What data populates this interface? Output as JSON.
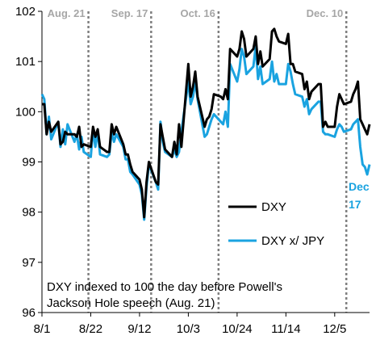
{
  "chart_data": {
    "type": "line",
    "title": "",
    "xlabel": "",
    "ylabel": "",
    "ylim": [
      96,
      102
    ],
    "yticks": [
      96,
      97,
      98,
      99,
      100,
      101,
      102
    ],
    "xlim": [
      "2022-08-01",
      "2022-12-20"
    ],
    "xtick_labels": [
      {
        "date": "2022-08-01",
        "label": "8/1"
      },
      {
        "date": "2022-08-22",
        "label": "8/22"
      },
      {
        "date": "2022-09-12",
        "label": "9/12"
      },
      {
        "date": "2022-10-03",
        "label": "10/3"
      },
      {
        "date": "2022-10-24",
        "label": "10/24"
      },
      {
        "date": "2022-11-14",
        "label": "11/14"
      },
      {
        "date": "2022-12-05",
        "label": "12/5"
      }
    ],
    "grid": false,
    "events": [
      {
        "date": "2022-08-21",
        "label": "Aug. 21"
      },
      {
        "date": "2022-09-17",
        "label": "Sep. 17"
      },
      {
        "date": "2022-10-16",
        "label": "Oct. 16"
      },
      {
        "date": "2022-12-10",
        "label": "Dec. 10"
      }
    ],
    "annotation": [
      "DXY indexed to 100 the day before Powell's",
      "Jackson Hole speech (Aug. 21)"
    ],
    "end_label": [
      "Dec",
      "17"
    ],
    "legend": {
      "position": "right",
      "entries": [
        "DXY",
        "DXY x/ JPY"
      ]
    },
    "series": [
      {
        "name": "DXY",
        "color": "#000000",
        "points": [
          [
            "2022-08-01",
            100.15
          ],
          [
            "2022-08-02",
            100.15
          ],
          [
            "2022-08-03",
            99.55
          ],
          [
            "2022-08-04",
            99.8
          ],
          [
            "2022-08-05",
            99.6
          ],
          [
            "2022-08-08",
            99.8
          ],
          [
            "2022-08-09",
            99.35
          ],
          [
            "2022-08-10",
            99.4
          ],
          [
            "2022-08-11",
            99.6
          ],
          [
            "2022-08-12",
            99.55
          ],
          [
            "2022-08-15",
            99.55
          ],
          [
            "2022-08-16",
            99.5
          ],
          [
            "2022-08-17",
            99.7
          ],
          [
            "2022-08-18",
            99.3
          ],
          [
            "2022-08-19",
            99.35
          ],
          [
            "2022-08-22",
            99.3
          ],
          [
            "2022-08-23",
            99.7
          ],
          [
            "2022-08-24",
            99.5
          ],
          [
            "2022-08-25",
            99.65
          ],
          [
            "2022-08-26",
            99.3
          ],
          [
            "2022-08-29",
            99.2
          ],
          [
            "2022-08-30",
            99.2
          ],
          [
            "2022-08-31",
            99.75
          ],
          [
            "2022-09-01",
            99.55
          ],
          [
            "2022-09-02",
            99.7
          ],
          [
            "2022-09-05",
            99.35
          ],
          [
            "2022-09-06",
            99.15
          ],
          [
            "2022-09-07",
            99.15
          ],
          [
            "2022-09-08",
            98.95
          ],
          [
            "2022-09-09",
            98.8
          ],
          [
            "2022-09-12",
            98.65
          ],
          [
            "2022-09-13",
            98.45
          ],
          [
            "2022-09-14",
            97.9
          ],
          [
            "2022-09-15",
            98.6
          ],
          [
            "2022-09-16",
            99.0
          ],
          [
            "2022-09-19",
            98.6
          ],
          [
            "2022-09-20",
            98.55
          ],
          [
            "2022-09-21",
            99.75
          ],
          [
            "2022-09-22",
            99.5
          ],
          [
            "2022-09-23",
            99.25
          ],
          [
            "2022-09-26",
            99.1
          ],
          [
            "2022-09-27",
            99.4
          ],
          [
            "2022-09-28",
            99.15
          ],
          [
            "2022-09-29",
            99.75
          ],
          [
            "2022-09-30",
            99.3
          ],
          [
            "2022-10-03",
            100.95
          ],
          [
            "2022-10-04",
            100.3
          ],
          [
            "2022-10-05",
            100.5
          ],
          [
            "2022-10-06",
            100.8
          ],
          [
            "2022-10-07",
            100.3
          ],
          [
            "2022-10-10",
            99.7
          ],
          [
            "2022-10-11",
            99.85
          ],
          [
            "2022-10-12",
            99.9
          ],
          [
            "2022-10-13",
            100.05
          ],
          [
            "2022-10-14",
            100.35
          ],
          [
            "2022-10-17",
            100.3
          ],
          [
            "2022-10-18",
            100.25
          ],
          [
            "2022-10-19",
            100.45
          ],
          [
            "2022-10-20",
            100.25
          ],
          [
            "2022-10-21",
            101.25
          ],
          [
            "2022-10-24",
            101.1
          ],
          [
            "2022-10-25",
            101.25
          ],
          [
            "2022-10-26",
            101.6
          ],
          [
            "2022-10-27",
            101.45
          ],
          [
            "2022-10-28",
            101.1
          ],
          [
            "2022-10-31",
            101.25
          ],
          [
            "2022-11-01",
            101.5
          ],
          [
            "2022-11-02",
            100.95
          ],
          [
            "2022-11-03",
            101.2
          ],
          [
            "2022-11-04",
            100.9
          ],
          [
            "2022-11-07",
            101.05
          ],
          [
            "2022-11-08",
            101.6
          ],
          [
            "2022-11-09",
            101.65
          ],
          [
            "2022-11-10",
            101.5
          ],
          [
            "2022-11-11",
            101.4
          ],
          [
            "2022-11-14",
            101.35
          ],
          [
            "2022-11-15",
            101.55
          ],
          [
            "2022-11-16",
            100.95
          ],
          [
            "2022-11-17",
            100.95
          ],
          [
            "2022-11-18",
            100.8
          ],
          [
            "2022-11-21",
            100.75
          ],
          [
            "2022-11-22",
            100.45
          ],
          [
            "2022-11-23",
            100.6
          ],
          [
            "2022-11-24",
            100.25
          ],
          [
            "2022-11-25",
            100.4
          ],
          [
            "2022-11-28",
            100.55
          ],
          [
            "2022-11-29",
            100.55
          ],
          [
            "2022-11-30",
            99.7
          ],
          [
            "2022-12-01",
            99.8
          ],
          [
            "2022-12-02",
            99.7
          ],
          [
            "2022-12-05",
            99.7
          ],
          [
            "2022-12-06",
            100.1
          ],
          [
            "2022-12-07",
            100.35
          ],
          [
            "2022-12-08",
            100.25
          ],
          [
            "2022-12-09",
            100.15
          ],
          [
            "2022-12-12",
            100.2
          ],
          [
            "2022-12-13",
            100.35
          ],
          [
            "2022-12-14",
            100.45
          ],
          [
            "2022-12-15",
            100.6
          ],
          [
            "2022-12-16",
            99.85
          ],
          [
            "2022-12-17",
            99.75
          ],
          [
            "2022-12-18",
            99.65
          ],
          [
            "2022-12-19",
            99.55
          ],
          [
            "2022-12-20",
            99.75
          ]
        ]
      },
      {
        "name": "DXY x/ JPY",
        "color": "#1aa3e0",
        "points": [
          [
            "2022-08-01",
            100.35
          ],
          [
            "2022-08-02",
            100.25
          ],
          [
            "2022-08-03",
            99.55
          ],
          [
            "2022-08-04",
            99.9
          ],
          [
            "2022-08-05",
            99.45
          ],
          [
            "2022-08-08",
            99.8
          ],
          [
            "2022-08-09",
            99.3
          ],
          [
            "2022-08-10",
            99.65
          ],
          [
            "2022-08-11",
            99.35
          ],
          [
            "2022-08-12",
            99.75
          ],
          [
            "2022-08-15",
            99.4
          ],
          [
            "2022-08-16",
            99.55
          ],
          [
            "2022-08-17",
            99.25
          ],
          [
            "2022-08-18",
            99.5
          ],
          [
            "2022-08-19",
            99.2
          ],
          [
            "2022-08-22",
            99.1
          ],
          [
            "2022-08-23",
            99.65
          ],
          [
            "2022-08-24",
            99.3
          ],
          [
            "2022-08-25",
            99.6
          ],
          [
            "2022-08-26",
            99.15
          ],
          [
            "2022-08-29",
            99.1
          ],
          [
            "2022-08-30",
            99.15
          ],
          [
            "2022-08-31",
            99.6
          ],
          [
            "2022-09-01",
            99.4
          ],
          [
            "2022-09-02",
            99.55
          ],
          [
            "2022-09-05",
            99.3
          ],
          [
            "2022-09-06",
            99.05
          ],
          [
            "2022-09-07",
            99.05
          ],
          [
            "2022-09-08",
            98.8
          ],
          [
            "2022-09-09",
            98.75
          ],
          [
            "2022-09-12",
            98.55
          ],
          [
            "2022-09-13",
            98.35
          ],
          [
            "2022-09-14",
            97.85
          ],
          [
            "2022-09-15",
            98.5
          ],
          [
            "2022-09-16",
            98.95
          ],
          [
            "2022-09-19",
            98.6
          ],
          [
            "2022-09-20",
            98.45
          ],
          [
            "2022-09-21",
            99.8
          ],
          [
            "2022-09-22",
            99.4
          ],
          [
            "2022-09-23",
            99.2
          ],
          [
            "2022-09-26",
            99.1
          ],
          [
            "2022-09-27",
            99.25
          ],
          [
            "2022-09-28",
            99.1
          ],
          [
            "2022-09-29",
            99.2
          ],
          [
            "2022-09-30",
            99.6
          ],
          [
            "2022-10-03",
            100.6
          ],
          [
            "2022-10-04",
            100.15
          ],
          [
            "2022-10-05",
            100.3
          ],
          [
            "2022-10-06",
            100.6
          ],
          [
            "2022-10-07",
            100.25
          ],
          [
            "2022-10-10",
            99.5
          ],
          [
            "2022-10-11",
            99.55
          ],
          [
            "2022-10-12",
            99.7
          ],
          [
            "2022-10-13",
            99.85
          ],
          [
            "2022-10-14",
            99.95
          ],
          [
            "2022-10-17",
            99.8
          ],
          [
            "2022-10-18",
            99.75
          ],
          [
            "2022-10-19",
            100.0
          ],
          [
            "2022-10-20",
            99.7
          ],
          [
            "2022-10-21",
            100.95
          ],
          [
            "2022-10-24",
            100.6
          ],
          [
            "2022-10-25",
            100.85
          ],
          [
            "2022-10-26",
            101.25
          ],
          [
            "2022-10-27",
            101.1
          ],
          [
            "2022-10-28",
            100.75
          ],
          [
            "2022-10-31",
            100.9
          ],
          [
            "2022-11-01",
            101.3
          ],
          [
            "2022-11-02",
            100.65
          ],
          [
            "2022-11-03",
            100.9
          ],
          [
            "2022-11-04",
            100.55
          ],
          [
            "2022-11-07",
            100.65
          ],
          [
            "2022-11-08",
            101.0
          ],
          [
            "2022-11-09",
            100.6
          ],
          [
            "2022-11-10",
            100.75
          ],
          [
            "2022-11-11",
            100.55
          ],
          [
            "2022-11-14",
            100.55
          ],
          [
            "2022-11-15",
            100.95
          ],
          [
            "2022-11-16",
            100.8
          ],
          [
            "2022-11-17",
            100.55
          ],
          [
            "2022-11-18",
            100.35
          ],
          [
            "2022-11-21",
            100.3
          ],
          [
            "2022-11-22",
            100.1
          ],
          [
            "2022-11-23",
            100.25
          ],
          [
            "2022-11-24",
            99.95
          ],
          [
            "2022-11-25",
            100.05
          ],
          [
            "2022-11-28",
            100.2
          ],
          [
            "2022-11-29",
            100.2
          ],
          [
            "2022-11-30",
            99.6
          ],
          [
            "2022-12-01",
            99.55
          ],
          [
            "2022-12-02",
            99.55
          ],
          [
            "2022-12-05",
            99.5
          ],
          [
            "2022-12-06",
            99.65
          ],
          [
            "2022-12-07",
            99.75
          ],
          [
            "2022-12-08",
            99.7
          ],
          [
            "2022-12-09",
            99.6
          ],
          [
            "2022-12-12",
            99.65
          ],
          [
            "2022-12-13",
            99.75
          ],
          [
            "2022-12-14",
            99.8
          ],
          [
            "2022-12-15",
            99.85
          ],
          [
            "2022-12-16",
            99.3
          ],
          [
            "2022-12-17",
            98.95
          ],
          [
            "2022-12-18",
            98.9
          ],
          [
            "2022-12-19",
            98.75
          ],
          [
            "2022-12-20",
            98.95
          ]
        ]
      }
    ]
  }
}
